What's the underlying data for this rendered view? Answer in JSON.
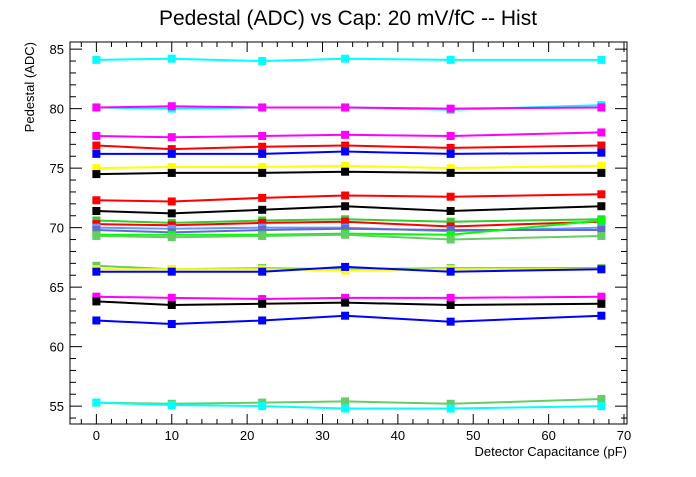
{
  "chart_data": {
    "type": "line",
    "title": "Pedestal (ADC) vs Cap: 20 mV/fC -- Hist",
    "xlabel": "Detector Capacitance (pF)",
    "ylabel": "Pedestal (ADC)",
    "xlim": [
      -3.5,
      70.4
    ],
    "ylim": [
      53.5,
      85.6
    ],
    "x_ticks": [
      0,
      10,
      20,
      30,
      40,
      50,
      60,
      70
    ],
    "y_ticks": [
      55,
      60,
      65,
      70,
      75,
      80,
      85
    ],
    "grid": false,
    "legend": "none",
    "x": [
      0,
      10,
      22,
      33,
      47,
      67
    ],
    "series": [
      {
        "color": "#00ffff",
        "values": [
          84.1,
          84.2,
          84.0,
          84.2,
          84.1,
          84.1
        ]
      },
      {
        "color": "#00ffff",
        "values": [
          80.1,
          80.0,
          80.1,
          80.1,
          79.9,
          80.3
        ]
      },
      {
        "color": "#ff00ff",
        "values": [
          80.1,
          80.2,
          80.1,
          80.1,
          80.0,
          80.1
        ]
      },
      {
        "color": "#ff00ff",
        "values": [
          77.7,
          77.6,
          77.7,
          77.8,
          77.7,
          78.0
        ]
      },
      {
        "color": "#ff0000",
        "values": [
          76.9,
          76.6,
          76.8,
          76.9,
          76.7,
          76.9
        ]
      },
      {
        "color": "#0000ff",
        "values": [
          76.2,
          76.2,
          76.2,
          76.4,
          76.2,
          76.3
        ]
      },
      {
        "color": "#ffff00",
        "values": [
          75.0,
          75.1,
          75.1,
          75.2,
          75.0,
          75.2
        ]
      },
      {
        "color": "#000000",
        "values": [
          74.5,
          74.6,
          74.6,
          74.7,
          74.6,
          74.6
        ]
      },
      {
        "color": "#ff0000",
        "values": [
          72.3,
          72.2,
          72.5,
          72.7,
          72.6,
          72.8
        ]
      },
      {
        "color": "#000000",
        "values": [
          71.4,
          71.2,
          71.5,
          71.8,
          71.4,
          71.8
        ]
      },
      {
        "color": "#33cc33",
        "values": [
          70.6,
          70.4,
          70.6,
          70.7,
          70.5,
          70.7
        ]
      },
      {
        "color": "#ff0000",
        "values": [
          70.3,
          70.2,
          70.4,
          70.5,
          70.1,
          70.5
        ]
      },
      {
        "color": "#6699ff",
        "values": [
          70.0,
          69.9,
          70.0,
          70.0,
          69.7,
          70.0
        ]
      },
      {
        "color": "#6666cc",
        "values": [
          69.8,
          69.6,
          69.8,
          69.9,
          69.8,
          69.8
        ]
      },
      {
        "color": "#00ff00",
        "values": [
          69.4,
          69.4,
          69.4,
          69.5,
          69.4,
          70.6
        ]
      },
      {
        "color": "#66cc66",
        "values": [
          69.3,
          69.2,
          69.3,
          69.4,
          69.0,
          69.3
        ]
      },
      {
        "color": "#66cc66",
        "values": [
          66.8,
          66.5,
          66.6,
          66.5,
          66.6,
          66.6
        ]
      },
      {
        "color": "#ffff00",
        "values": [
          66.5,
          66.5,
          66.5,
          66.4,
          66.5,
          66.5
        ]
      },
      {
        "color": "#0000ff",
        "values": [
          66.3,
          66.3,
          66.3,
          66.7,
          66.3,
          66.5
        ]
      },
      {
        "color": "#ff00ff",
        "values": [
          64.2,
          64.1,
          64.0,
          64.1,
          64.1,
          64.2
        ]
      },
      {
        "color": "#000000",
        "values": [
          63.8,
          63.5,
          63.6,
          63.7,
          63.5,
          63.6
        ]
      },
      {
        "color": "#0000ff",
        "values": [
          62.2,
          61.9,
          62.2,
          62.6,
          62.1,
          62.6
        ]
      },
      {
        "color": "#66cc66",
        "values": [
          55.3,
          55.2,
          55.3,
          55.4,
          55.2,
          55.6
        ]
      },
      {
        "color": "#00ffff",
        "values": [
          55.3,
          55.1,
          55.0,
          54.8,
          54.8,
          55.0
        ]
      }
    ]
  }
}
